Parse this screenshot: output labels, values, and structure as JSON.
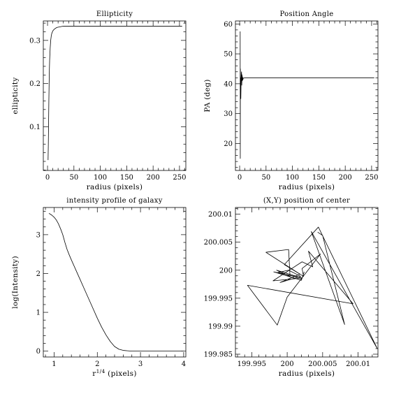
{
  "chart_data": [
    {
      "type": "line",
      "title": "Ellipticity",
      "xlabel": "radius (pixels)",
      "ylabel": "ellipticity",
      "xlim": [
        -8,
        262
      ],
      "ylim": [
        -0.001,
        0.345
      ],
      "xticks": [
        0,
        50,
        100,
        150,
        200,
        250
      ],
      "yticks": [
        0.1,
        0.2,
        0.3
      ],
      "series": [
        {
          "x": [
            1,
            1.5,
            2,
            2.5,
            3,
            3.5,
            4,
            5,
            6,
            7,
            8,
            10,
            12,
            15,
            18,
            22,
            26,
            30,
            35,
            40,
            50,
            60,
            80,
            100,
            150,
            200,
            255
          ],
          "y": [
            0.023,
            0.06,
            0.11,
            0.16,
            0.2,
            0.232,
            0.255,
            0.282,
            0.3,
            0.31,
            0.316,
            0.322,
            0.325,
            0.328,
            0.33,
            0.331,
            0.332,
            0.333,
            0.333,
            0.333,
            0.333,
            0.333,
            0.333,
            0.333,
            0.333,
            0.333,
            0.333
          ]
        }
      ]
    },
    {
      "type": "line",
      "title": "Position Angle",
      "xlabel": "radius (pixels)",
      "ylabel": "PA (deg)",
      "xlim": [
        -8,
        262
      ],
      "ylim": [
        11,
        61
      ],
      "xticks": [
        0,
        50,
        100,
        150,
        200,
        250
      ],
      "yticks": [
        20,
        30,
        40,
        50,
        60
      ],
      "series": [
        {
          "x": [
            1,
            1.2,
            1.4,
            1.6,
            1.8,
            2,
            2.2,
            2.5,
            2.8,
            3.2,
            3.6,
            4,
            4.5,
            5,
            5.5,
            6,
            7,
            8,
            10,
            15,
            30,
            60,
            100,
            150,
            200,
            255
          ],
          "y": [
            57.5,
            15,
            45,
            36,
            42,
            40,
            35,
            38,
            42,
            43.5,
            44,
            39.5,
            43,
            41,
            42.3,
            41.3,
            41.9,
            41.9,
            42,
            42,
            42,
            42,
            42,
            42,
            42,
            42
          ]
        }
      ]
    },
    {
      "type": "line",
      "title": "intensity profile of galaxy",
      "xlabel": "r^{1/4} (pixels)",
      "ylabel": "log(Intensity)",
      "xlim": [
        0.75,
        4.05
      ],
      "ylim": [
        -0.15,
        3.7
      ],
      "xticks": [
        1,
        2,
        3,
        4
      ],
      "yticks": [
        0,
        1,
        2,
        3
      ],
      "series": [
        {
          "x": [
            0.88,
            0.95,
            1.0,
            1.05,
            1.1,
            1.15,
            1.2,
            1.25,
            1.3,
            1.35,
            1.4,
            1.5,
            1.6,
            1.7,
            1.8,
            1.9,
            2.0,
            2.1,
            2.2,
            2.3,
            2.4,
            2.5,
            2.6,
            2.7,
            2.8,
            3.0,
            3.3,
            3.6,
            4.0
          ],
          "y": [
            3.55,
            3.5,
            3.45,
            3.38,
            3.28,
            3.15,
            3.0,
            2.8,
            2.62,
            2.48,
            2.35,
            2.1,
            1.85,
            1.6,
            1.35,
            1.1,
            0.85,
            0.62,
            0.42,
            0.25,
            0.12,
            0.05,
            0.02,
            0.01,
            0.0,
            0.0,
            0.0,
            0.0,
            0.0
          ]
        }
      ]
    },
    {
      "type": "line",
      "title": "(X,Y) position of center",
      "xlabel": "radius (pixels)",
      "ylabel": "",
      "xlim": [
        199.9927,
        200.0128
      ],
      "ylim": [
        199.9845,
        200.0112
      ],
      "xticks": [
        199.995,
        200,
        200.005,
        200.01
      ],
      "xtick_labels": [
        "199.995",
        "200",
        "200.005",
        "200.01"
      ],
      "yticks": [
        199.985,
        199.99,
        199.995,
        200,
        200.005,
        200.01
      ],
      "ytick_labels": [
        "199.985",
        "199.99",
        "199.995",
        "200",
        "200.005",
        "200.01"
      ],
      "series": [
        {
          "x": [
            200.0043,
            200.005,
            200.0081,
            200.0034,
            200.0127,
            200.0044,
            199.9996,
            200.0018,
            199.999,
            200.0019,
            200.0002,
            199.9987,
            200.0021,
            199.998,
            200.0021,
            200.0036,
            200.003,
            200.0093,
            199.9944,
            199.9986,
            200.0,
            200.0047,
            200.0021,
            200.0023,
            199.997,
            200.0002,
            200.0004,
            199.9985,
            200.0021,
            199.9981,
            200.002,
            200.0024
          ],
          "y": [
            200.0068,
            200.0062,
            199.9903,
            200.0069,
            199.986,
            200.0077,
            200.001,
            199.9993,
            199.9978,
            199.9989,
            200.0,
            199.9996,
            199.9986,
            199.9981,
            200.0015,
            200.0006,
            200.0034,
            199.994,
            199.9973,
            199.9902,
            199.9952,
            200.0029,
            200.0003,
            199.9989,
            200.0032,
            200.0037,
            199.9989,
            200.0,
            199.9986,
            199.9997,
            199.9982,
            199.9997
          ]
        }
      ]
    }
  ]
}
